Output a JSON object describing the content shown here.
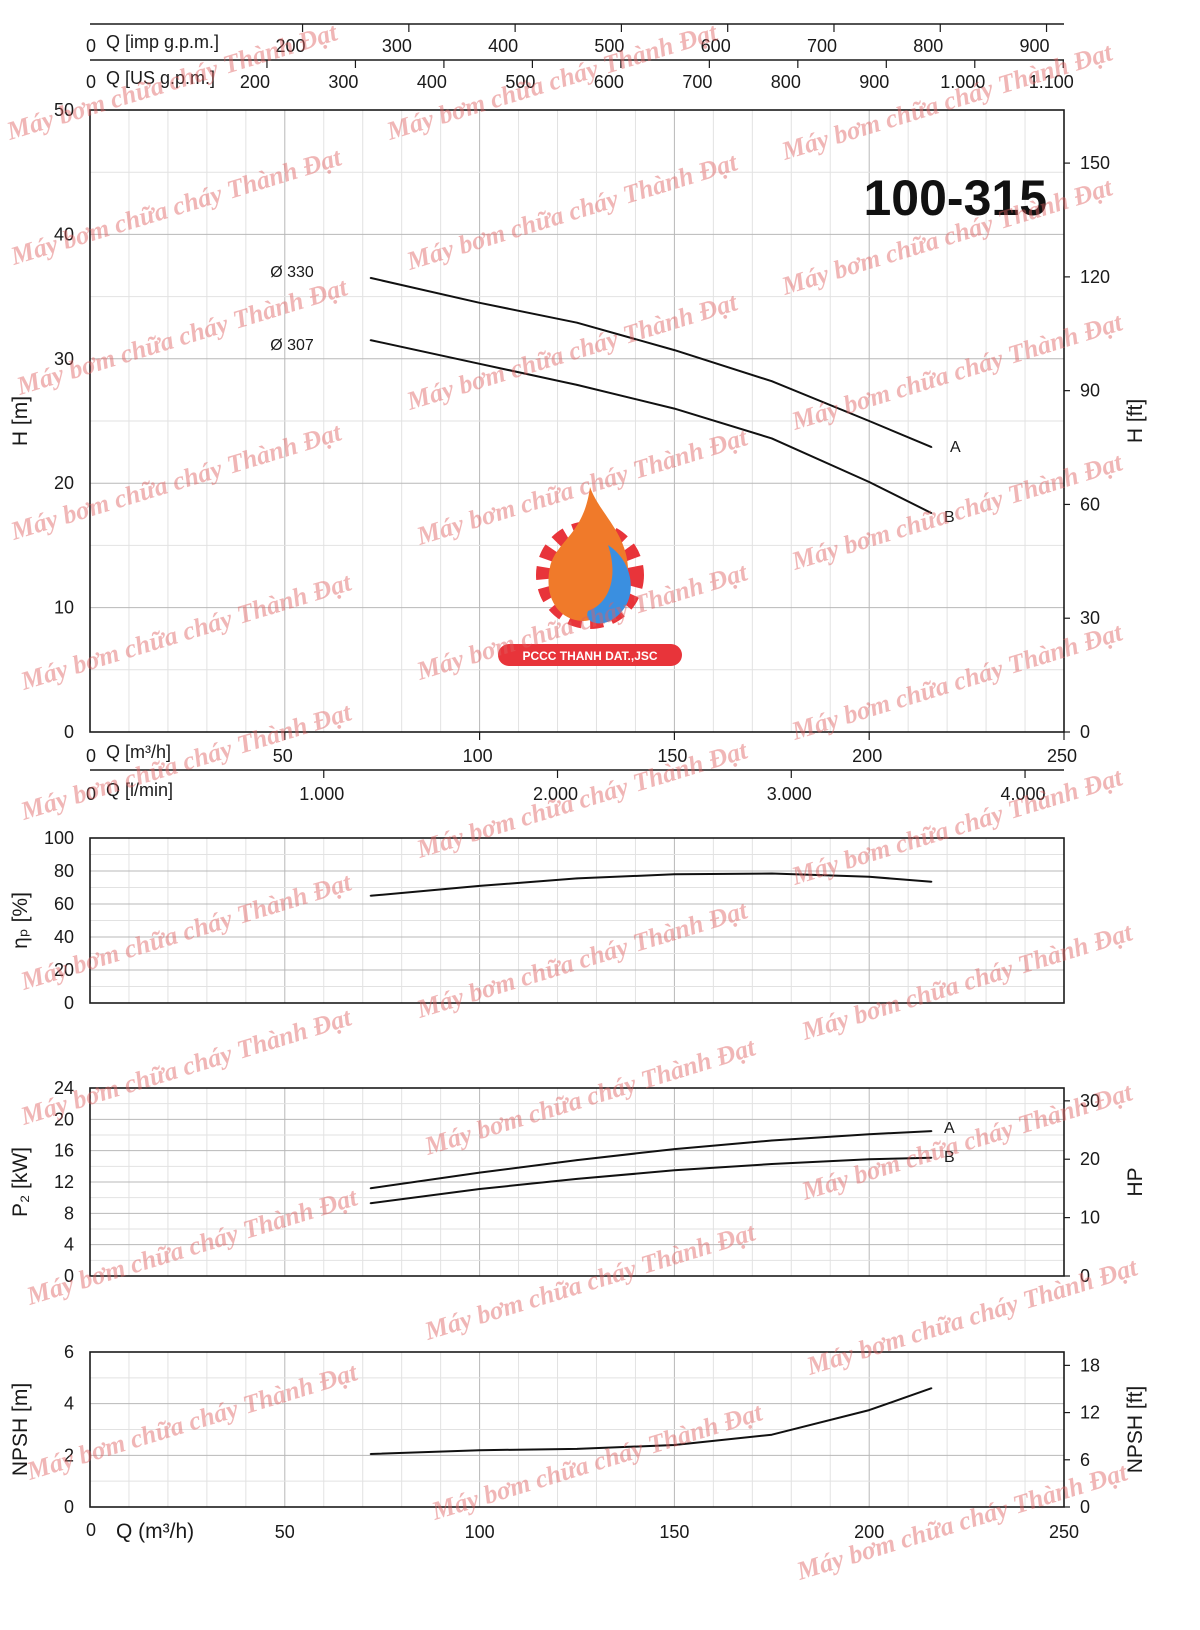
{
  "model": "100-315",
  "colors": {
    "axis": "#1a1a1a",
    "grid_major": "#b8b8b8",
    "grid_minor": "#e2e2e2",
    "curve": "#111111",
    "watermark": "#e06060",
    "logo_badge": "#e8343a",
    "logo_flame": "#f07a2a",
    "logo_water": "#3a8fe0"
  },
  "watermark_text": "Máy bơm chữa cháy Thành Đạt",
  "logo_text": "PCCC THANH DAT.,JSC",
  "top_axes": [
    {
      "label": "Q [imp g.p.m.]",
      "zero": "0",
      "ticks": [
        {
          "value": 200,
          "label": "200"
        },
        {
          "value": 300,
          "label": "300"
        },
        {
          "value": 400,
          "label": "400"
        },
        {
          "value": 500,
          "label": "500"
        },
        {
          "value": 600,
          "label": "600"
        },
        {
          "value": 700,
          "label": "700"
        },
        {
          "value": 800,
          "label": "800"
        },
        {
          "value": 900,
          "label": "900"
        }
      ],
      "m3h_per_unit": 0.2728
    },
    {
      "label": "Q [US g.p.m.]",
      "zero": "0",
      "ticks": [
        {
          "value": 200,
          "label": "200"
        },
        {
          "value": 300,
          "label": "300"
        },
        {
          "value": 400,
          "label": "400"
        },
        {
          "value": 500,
          "label": "500"
        },
        {
          "value": 600,
          "label": "600"
        },
        {
          "value": 700,
          "label": "700"
        },
        {
          "value": 800,
          "label": "800"
        },
        {
          "value": 900,
          "label": "900"
        },
        {
          "value": 1000,
          "label": "1.000"
        },
        {
          "value": 1100,
          "label": "1.100"
        }
      ],
      "m3h_per_unit": 0.2271
    }
  ],
  "middle_axes": [
    {
      "label": "Q [m³/h]",
      "zero": "0",
      "ticks": [
        {
          "value": 50,
          "label": "50"
        },
        {
          "value": 100,
          "label": "100"
        },
        {
          "value": 150,
          "label": "150"
        },
        {
          "value": 200,
          "label": "200"
        },
        {
          "value": 250,
          "label": "250"
        }
      ],
      "m3h_per_unit": 1
    },
    {
      "label": "Q [l/min]",
      "zero": "0",
      "ticks": [
        {
          "value": 1000,
          "label": "1.000"
        },
        {
          "value": 2000,
          "label": "2.000"
        },
        {
          "value": 3000,
          "label": "3.000"
        },
        {
          "value": 4000,
          "label": "4.000"
        }
      ],
      "m3h_per_unit": 0.06
    }
  ],
  "bottom_axis": {
    "label": "Q (m³/h)",
    "zero": "0",
    "ticks": [
      {
        "value": 50,
        "label": "50"
      },
      {
        "value": 100,
        "label": "100"
      },
      {
        "value": 150,
        "label": "150"
      },
      {
        "value": 200,
        "label": "200"
      },
      {
        "value": 250,
        "label": "250"
      }
    ]
  },
  "chart_data": [
    {
      "type": "line",
      "id": "head",
      "xlabel": "Q [m³/h]",
      "ylabel": "H [m]",
      "y2label": "H [ft]",
      "xlim": [
        0,
        250
      ],
      "ylim": [
        0,
        50
      ],
      "y2lim": [
        0,
        164
      ],
      "yticks": [
        0,
        10,
        20,
        30,
        40,
        50
      ],
      "y2ticks": [
        0,
        30,
        60,
        90,
        120,
        150
      ],
      "grid": true,
      "series": [
        {
          "name": "Ø 330",
          "end_label": "A",
          "x": [
            72,
            100,
            125,
            150,
            175,
            200,
            216
          ],
          "y": [
            36.5,
            34.5,
            32.9,
            30.7,
            28.2,
            25,
            22.9
          ]
        },
        {
          "name": "Ø 307",
          "end_label": "B",
          "x": [
            72,
            100,
            125,
            150,
            175,
            200,
            216
          ],
          "y": [
            31.5,
            29.6,
            27.9,
            26,
            23.6,
            20.1,
            17.6
          ]
        }
      ]
    },
    {
      "type": "line",
      "id": "efficiency",
      "xlabel": "",
      "ylabel": "ηₚ [%]",
      "xlim": [
        0,
        250
      ],
      "ylim": [
        0,
        100
      ],
      "yticks": [
        0,
        20,
        40,
        60,
        80,
        100
      ],
      "grid": true,
      "series": [
        {
          "x": [
            72,
            100,
            125,
            150,
            175,
            200,
            216
          ],
          "y": [
            65,
            71,
            75.5,
            78,
            78.5,
            76.5,
            73.5
          ]
        }
      ]
    },
    {
      "type": "line",
      "id": "power",
      "xlabel": "",
      "ylabel": "P₂ [kW]",
      "y2label": "HP",
      "xlim": [
        0,
        250
      ],
      "ylim": [
        0,
        24
      ],
      "y2lim": [
        0,
        32.2
      ],
      "yticks": [
        0,
        4,
        8,
        12,
        16,
        20,
        24
      ],
      "y2ticks": [
        0,
        10,
        20,
        30
      ],
      "grid": true,
      "series": [
        {
          "end_label": "A",
          "x": [
            72,
            100,
            125,
            150,
            175,
            200,
            216
          ],
          "y": [
            11.2,
            13.2,
            14.8,
            16.2,
            17.3,
            18.1,
            18.5
          ]
        },
        {
          "end_label": "B",
          "x": [
            72,
            100,
            125,
            150,
            175,
            200,
            216
          ],
          "y": [
            9.3,
            11.1,
            12.4,
            13.5,
            14.3,
            14.9,
            15.1
          ]
        }
      ]
    },
    {
      "type": "line",
      "id": "npsh",
      "xlabel": "Q (m³/h)",
      "ylabel": "NPSH [m]",
      "y2label": "NPSH [ft]",
      "xlim": [
        0,
        250
      ],
      "ylim": [
        0,
        6
      ],
      "y2lim": [
        0,
        19.7
      ],
      "yticks": [
        0,
        2,
        4,
        6
      ],
      "y2ticks": [
        0,
        6,
        12,
        18
      ],
      "grid": true,
      "series": [
        {
          "x": [
            72,
            100,
            125,
            150,
            175,
            200,
            216
          ],
          "y": [
            2.05,
            2.2,
            2.25,
            2.4,
            2.8,
            3.75,
            4.6
          ]
        }
      ]
    }
  ]
}
